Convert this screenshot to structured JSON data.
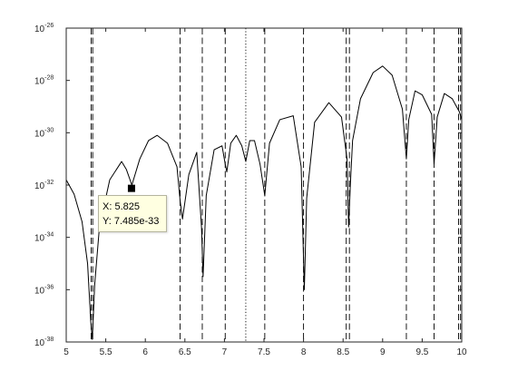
{
  "chart_data": {
    "type": "line",
    "title": "",
    "xlabel": "",
    "ylabel": "",
    "xlim": [
      5,
      10
    ],
    "ylim_log10": [
      -38,
      -26
    ],
    "y_scale": "log",
    "grid": false,
    "x_ticks": [
      {
        "value": 5,
        "label": "5"
      },
      {
        "value": 5.5,
        "label": "5.5"
      },
      {
        "value": 6,
        "label": "6"
      },
      {
        "value": 6.5,
        "label": "6.5"
      },
      {
        "value": 7,
        "label": "7"
      },
      {
        "value": 7.5,
        "label": "7.5"
      },
      {
        "value": 8,
        "label": "8"
      },
      {
        "value": 8.5,
        "label": "8.5"
      },
      {
        "value": 9,
        "label": "9"
      },
      {
        "value": 9.5,
        "label": "9.5"
      },
      {
        "value": 10,
        "label": "10"
      }
    ],
    "y_ticks": [
      {
        "exp": -26,
        "base": "10",
        "sup": "-26"
      },
      {
        "exp": -28,
        "base": "10",
        "sup": "-28"
      },
      {
        "exp": -30,
        "base": "10",
        "sup": "-30"
      },
      {
        "exp": -32,
        "base": "10",
        "sup": "-32"
      },
      {
        "exp": -34,
        "base": "10",
        "sup": "-34"
      },
      {
        "exp": -36,
        "base": "10",
        "sup": "-36"
      },
      {
        "exp": -38,
        "base": "10",
        "sup": "-38"
      }
    ],
    "series": [
      {
        "color": "#000000",
        "x": [
          5.0,
          5.1,
          5.2,
          5.27,
          5.31,
          5.33,
          5.36,
          5.42,
          5.55,
          5.7,
          5.76,
          5.83,
          5.93,
          6.04,
          6.15,
          6.28,
          6.4,
          6.44,
          6.47,
          6.55,
          6.65,
          6.71,
          6.73,
          6.77,
          6.87,
          6.97,
          7.01,
          7.03,
          7.08,
          7.15,
          7.22,
          7.27,
          7.32,
          7.38,
          7.45,
          7.51,
          7.57,
          7.7,
          7.87,
          7.97,
          8.01,
          8.04,
          8.14,
          8.32,
          8.48,
          8.55,
          8.57,
          8.59,
          8.62,
          8.72,
          8.88,
          9.0,
          9.12,
          9.25,
          9.3,
          9.33,
          9.41,
          9.5,
          9.62,
          9.65,
          9.69,
          9.78,
          9.88,
          9.97,
          10.0
        ],
        "y_log10": [
          -31.8,
          -32.35,
          -33.4,
          -35.0,
          -37.2,
          -37.9,
          -35.8,
          -33.6,
          -31.8,
          -31.1,
          -31.4,
          -32.0,
          -31.0,
          -30.3,
          -30.1,
          -30.4,
          -31.3,
          -32.6,
          -33.3,
          -31.6,
          -30.75,
          -33.6,
          -35.5,
          -32.4,
          -30.65,
          -30.5,
          -31.2,
          -31.5,
          -30.4,
          -30.1,
          -30.5,
          -31.1,
          -30.3,
          -30.3,
          -31.2,
          -32.4,
          -30.4,
          -29.5,
          -29.35,
          -31.3,
          -36.0,
          -32.5,
          -29.6,
          -28.85,
          -29.4,
          -31.0,
          -33.6,
          -32.1,
          -30.3,
          -28.7,
          -27.7,
          -27.45,
          -27.8,
          -29.1,
          -31.0,
          -29.5,
          -28.4,
          -28.55,
          -29.3,
          -31.2,
          -29.4,
          -28.5,
          -28.7,
          -29.2,
          -29.5
        ]
      }
    ],
    "vertical_lines": [
      {
        "x": 5.315,
        "style": "dashed"
      },
      {
        "x": 5.335,
        "style": "dashed"
      },
      {
        "x": 6.44,
        "style": "dashed"
      },
      {
        "x": 6.72,
        "style": "dashed"
      },
      {
        "x": 7.01,
        "style": "dashed"
      },
      {
        "x": 7.27,
        "style": "dotted"
      },
      {
        "x": 7.51,
        "style": "dashed"
      },
      {
        "x": 8.0,
        "style": "dashed"
      },
      {
        "x": 8.54,
        "style": "dashed"
      },
      {
        "x": 8.58,
        "style": "dashed"
      },
      {
        "x": 9.3,
        "style": "dashed"
      },
      {
        "x": 9.65,
        "style": "dashed"
      },
      {
        "x": 9.96,
        "style": "dashed"
      },
      {
        "x": 9.985,
        "style": "dashed"
      }
    ],
    "marker": {
      "x": 5.825,
      "y_log10": -32.126
    },
    "datatip": {
      "x_text": "X: 5.825",
      "y_text": "Y: 7.485e-33"
    }
  }
}
